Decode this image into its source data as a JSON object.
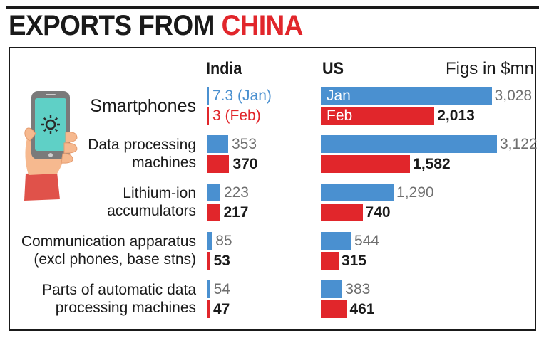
{
  "header": {
    "title_part1": "EXPORTS FROM",
    "title_part2": "CHINA",
    "col_india": "India",
    "col_us": "US",
    "units": "Figs in $mn"
  },
  "colors": {
    "jan": "#4a90d0",
    "feb": "#e1262b",
    "title_accent": "#e1262b"
  },
  "icon": "smartphone-with-gear-in-hand-icon",
  "chart_data": {
    "type": "bar",
    "title": "EXPORTS FROM CHINA",
    "units": "Figs in $mn",
    "categories": [
      [
        "Smartphones"
      ],
      [
        "Data processing",
        "machines"
      ],
      [
        "Lithium-ion",
        "accumulators"
      ],
      [
        "Communication apparatus",
        "(excl phones, base stns)"
      ],
      [
        "Parts of automatic data",
        "processing machines"
      ]
    ],
    "legend": {
      "jan": "Jan",
      "feb": "Feb"
    },
    "india": {
      "jan": [
        7.3,
        353,
        223,
        85,
        54
      ],
      "feb": [
        3,
        370,
        217,
        53,
        47
      ],
      "jan_labels": [
        "7.3 (Jan)",
        "353",
        "223",
        "85",
        "54"
      ],
      "feb_labels": [
        "3 (Feb)",
        "370",
        "217",
        "53",
        "47"
      ]
    },
    "us": {
      "jan": [
        3028,
        3122,
        1290,
        544,
        383
      ],
      "feb": [
        2013,
        1582,
        740,
        315,
        461
      ],
      "jan_labels": [
        "3,028",
        "3,122",
        "1,290",
        "544",
        "383"
      ],
      "feb_labels": [
        "2,013",
        "1,582",
        "740",
        "315",
        "461"
      ]
    }
  }
}
